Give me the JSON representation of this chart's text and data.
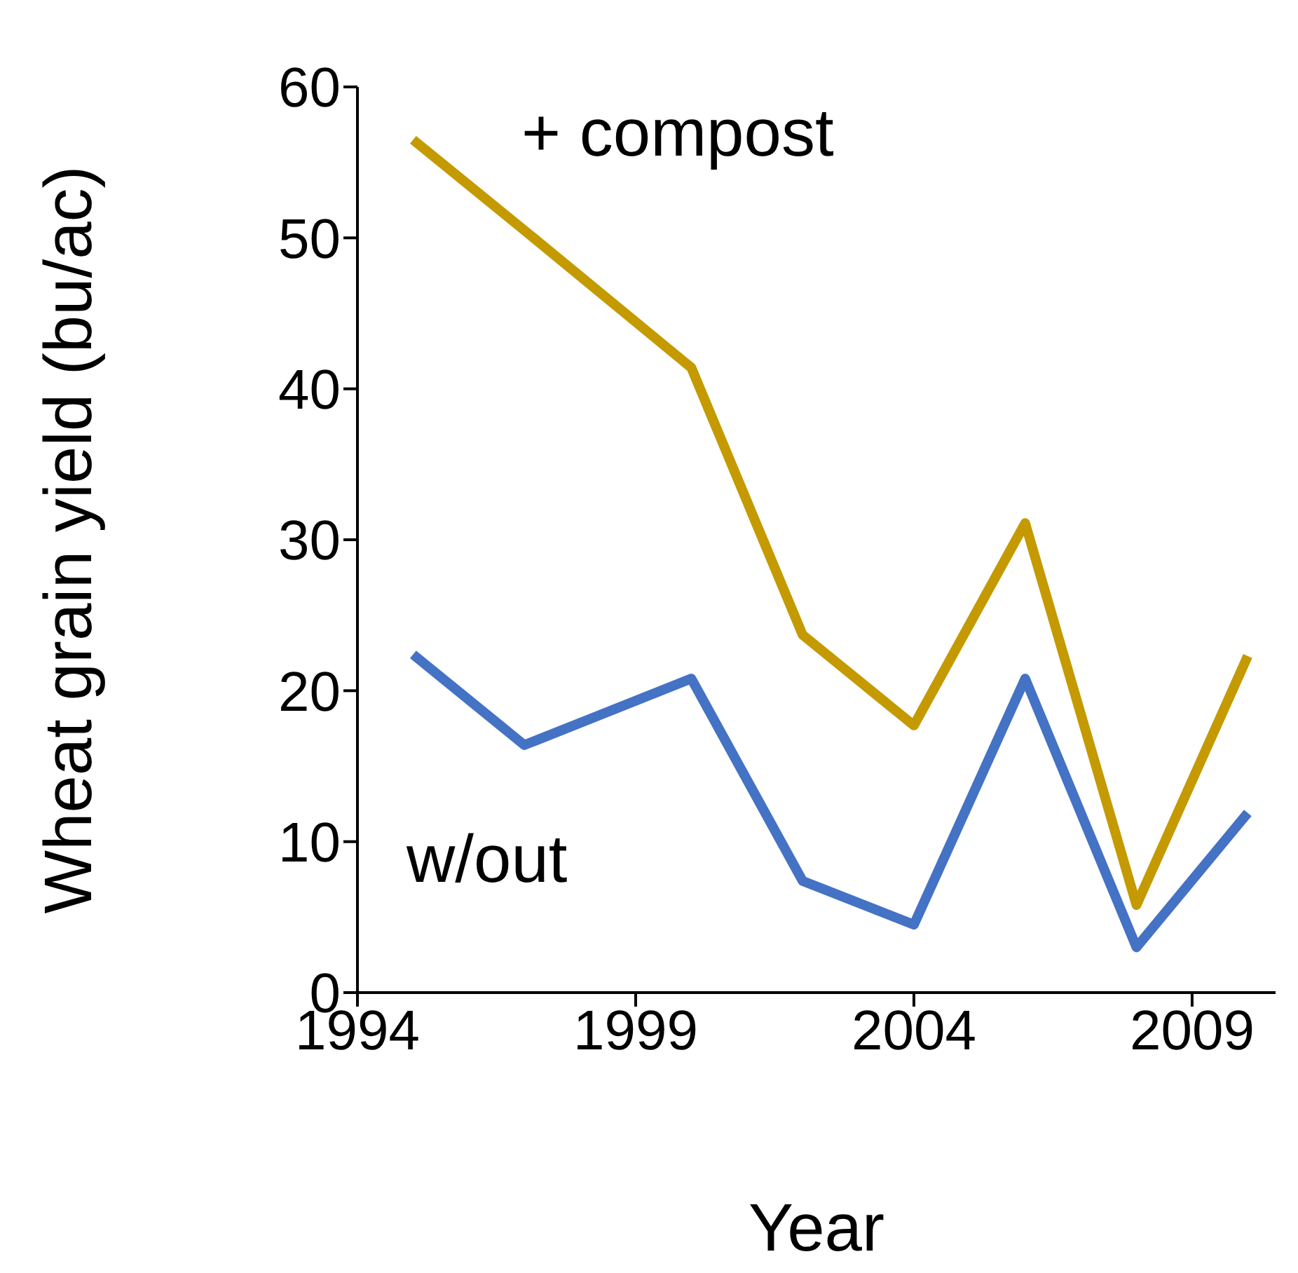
{
  "chart_data": {
    "type": "line",
    "xlabel": "Year",
    "ylabel": "Wheat grain yield (bu/ac)",
    "x": [
      1995,
      1997,
      2000,
      2002,
      2004,
      2006,
      2008,
      2010
    ],
    "series": [
      {
        "name": "+ compost",
        "color": "#c49a00",
        "values": [
          56.5,
          50.5,
          41.4,
          23.7,
          17.7,
          31.1,
          5.8,
          22.3
        ]
      },
      {
        "name": "w/out",
        "color": "#4472c4",
        "values": [
          22.4,
          16.4,
          20.8,
          7.4,
          4.5,
          20.8,
          3.0,
          11.9
        ]
      }
    ],
    "xlim": [
      1994,
      2010.5
    ],
    "xticks": [
      1994,
      1999,
      2004,
      2009
    ],
    "ylim": [
      0,
      60
    ],
    "yticks": [
      0,
      10,
      20,
      30,
      40,
      50,
      60
    ],
    "grid": false,
    "legend": false,
    "marker": "none",
    "line_style": "solid"
  }
}
